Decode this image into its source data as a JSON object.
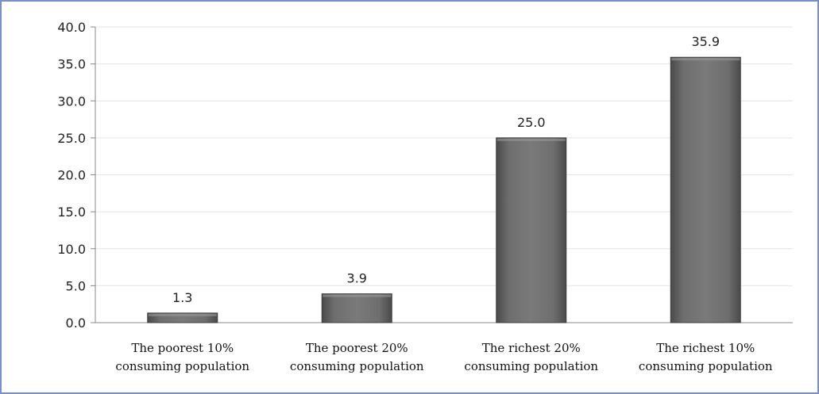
{
  "chart_data": {
    "type": "bar",
    "title": "",
    "xlabel": "",
    "ylabel": "",
    "categories": [
      [
        "The poorest 10%",
        "consuming population"
      ],
      [
        "The poorest 20%",
        "consuming population"
      ],
      [
        "The richest 20%",
        "consuming population"
      ],
      [
        "The richest 10%",
        "consuming population"
      ]
    ],
    "values": [
      1.3,
      3.9,
      25.0,
      35.9
    ],
    "data_labels": [
      "1.3",
      "3.9",
      "25.0",
      "35.9"
    ],
    "ylim": [
      0,
      40
    ],
    "yticks": [
      "0.0",
      "5.0",
      "10.0",
      "15.0",
      "20.0",
      "25.0",
      "30.0",
      "35.0",
      "40.0"
    ],
    "grid": true,
    "legend": "none",
    "colors": {
      "bar": "#6b6b6b",
      "bar_edge": "#3e3e3e",
      "grid": "#e4e4e4",
      "frame": "#7a8fc8",
      "axis": "#888888"
    }
  }
}
